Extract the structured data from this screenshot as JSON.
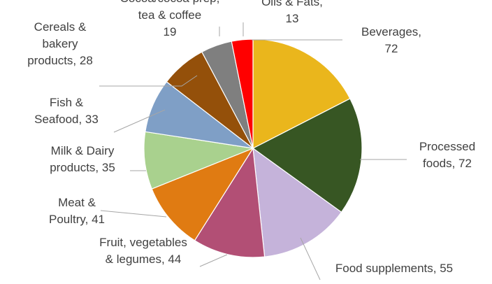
{
  "chart_data": {
    "type": "pie",
    "title": "",
    "legend": "none",
    "slices": [
      {
        "label": "Beverages",
        "value": 72,
        "color": "#EAB61C",
        "label_lines": [
          "Beverages,",
          "72"
        ]
      },
      {
        "label": "Processed foods",
        "value": 72,
        "color": "#375623",
        "label_lines": [
          "Processed",
          "foods, 72"
        ]
      },
      {
        "label": "Food supplements",
        "value": 55,
        "color": "#C5B3DA",
        "label_lines": [
          "Food supplements, 55"
        ]
      },
      {
        "label": "Fruit, vegetables & legumes",
        "value": 44,
        "color": "#B24F75",
        "label_lines": [
          "Fruit, vegetables",
          "& legumes, 44"
        ]
      },
      {
        "label": "Meat & Poultry",
        "value": 41,
        "color": "#E07B12",
        "label_lines": [
          "Meat &",
          "Poultry, 41"
        ]
      },
      {
        "label": "Milk & Dairy products",
        "value": 35,
        "color": "#A9D18E",
        "label_lines": [
          "Milk & Dairy",
          "products, 35"
        ]
      },
      {
        "label": "Fish & Seafood",
        "value": 33,
        "color": "#7F9FC6",
        "label_lines": [
          "Fish &",
          "Seafood, 33"
        ]
      },
      {
        "label": "Cereals & bakery products",
        "value": 28,
        "color": "#94500A",
        "label_lines": [
          "Cereals &",
          "bakery",
          "products, 28"
        ]
      },
      {
        "label": "Cocoa/cocoa prep, tea & coffee",
        "value": 19,
        "color": "#7F7F7F",
        "label_lines": [
          "Cocoa/cocoa prep,",
          "tea & coffee",
          "19"
        ]
      },
      {
        "label": "Oils & Fats",
        "value": 13,
        "color": "#FF0000",
        "label_lines": [
          "Oils & Fats,",
          "13"
        ]
      }
    ]
  }
}
